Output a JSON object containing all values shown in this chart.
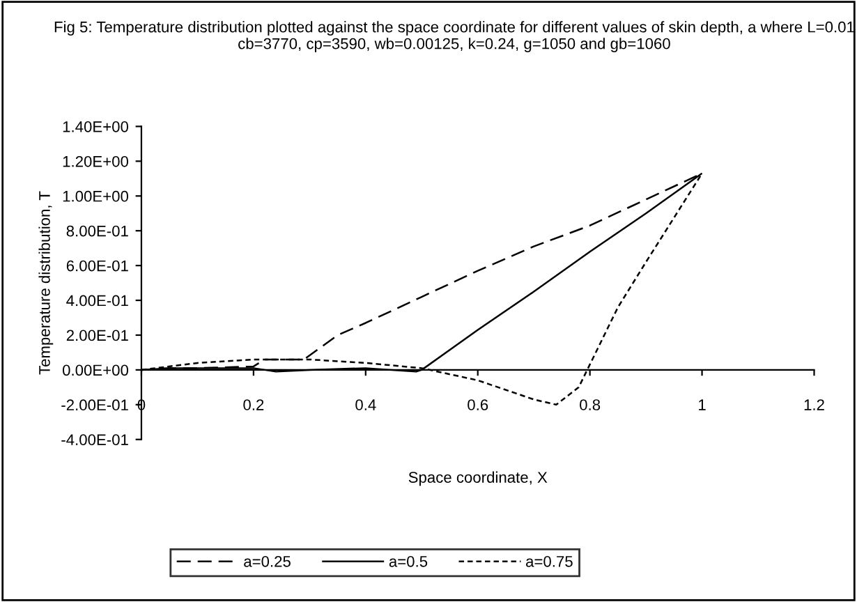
{
  "chart_data": {
    "type": "line",
    "title": "Fig 5: Temperature distribution plotted against the space coordinate for different values of skin depth, a where L=0.01 cb=3770, cp=3590, wb=0.00125, k=0.24, g=1050 and gb=1060",
    "xlabel": "Space coordinate, X",
    "ylabel": "Temperature distribution, T",
    "series": [
      {
        "name": "a=0.25",
        "color": "#000000",
        "line_style": "dashed",
        "x": [
          0,
          0.05,
          0.1,
          0.2,
          0.22,
          0.29,
          0.35,
          0.4,
          0.5,
          0.6,
          0.7,
          0.8,
          0.9,
          1.0
        ],
        "values": [
          0,
          0.01,
          0.01,
          0.02,
          0.06,
          0.06,
          0.2,
          0.27,
          0.42,
          0.57,
          0.71,
          0.83,
          0.98,
          1.13
        ]
      },
      {
        "name": "a=0.5",
        "color": "#000000",
        "line_style": "solid",
        "x": [
          0,
          0.05,
          0.1,
          0.2,
          0.24,
          0.3,
          0.4,
          0.49,
          0.5,
          0.6,
          0.7,
          0.8,
          0.9,
          1.0
        ],
        "values": [
          0,
          0.01,
          0.01,
          0.01,
          -0.01,
          0.0,
          0.01,
          -0.01,
          0,
          0.23,
          0.45,
          0.68,
          0.9,
          1.13
        ]
      },
      {
        "name": "a=0.75",
        "color": "#000000",
        "line_style": "dotted",
        "x": [
          0,
          0.1,
          0.2,
          0.3,
          0.4,
          0.5,
          0.6,
          0.7,
          0.74,
          0.78,
          0.85,
          0.9,
          1.0
        ],
        "values": [
          0,
          0.04,
          0.06,
          0.06,
          0.04,
          0.01,
          -0.06,
          -0.17,
          -0.2,
          -0.1,
          0.36,
          0.62,
          1.13
        ]
      }
    ],
    "xlim": [
      0,
      1.2
    ],
    "xticks": [
      0,
      0.2,
      0.4,
      0.6,
      0.8,
      1,
      1.2
    ],
    "ylim": [
      -0.4,
      1.4
    ],
    "yticks": [
      {
        "value": -0.4,
        "label": "-4.00E-01"
      },
      {
        "value": -0.2,
        "label": "-2.00E-01"
      },
      {
        "value": 0,
        "label": "0.00E+00"
      },
      {
        "value": 0.2,
        "label": "2.00E-01"
      },
      {
        "value": 0.4,
        "label": "4.00E-01"
      },
      {
        "value": 0.6,
        "label": "6.00E-01"
      },
      {
        "value": 0.8,
        "label": "8.00E-01"
      },
      {
        "value": 1.0,
        "label": "1.00E+00"
      },
      {
        "value": 1.2,
        "label": "1.20E+00"
      },
      {
        "value": 1.4,
        "label": "1.40E+00"
      }
    ],
    "legend": "bottom",
    "grid": false
  }
}
